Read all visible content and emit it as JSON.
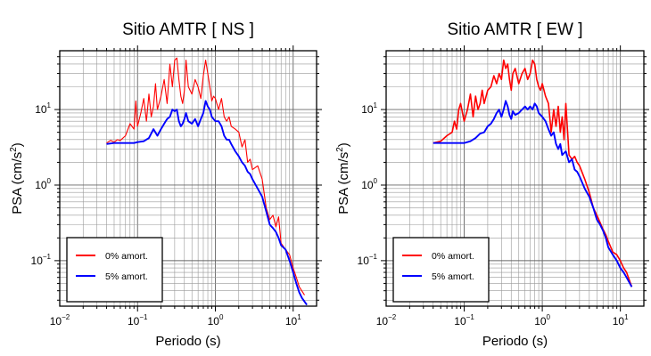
{
  "chart_data": [
    {
      "type": "line",
      "title": "Sitio AMTR [ NS ]",
      "xlabel": "Periodo (s)",
      "ylabel": "PSA (cm/s",
      "ylabel_sup": "2",
      "ylabel_close": ")",
      "xscale": "log",
      "yscale": "log",
      "xlim": [
        0.01,
        20
      ],
      "ylim": [
        0.025,
        60
      ],
      "grid": true,
      "legend_placement": "bottom-left",
      "x_ticks": [
        {
          "base": "10",
          "exp": "−2"
        },
        {
          "base": "10",
          "exp": "−1"
        },
        {
          "base": "10",
          "exp": "0"
        },
        {
          "base": "10",
          "exp": "1"
        }
      ],
      "y_ticks": [
        {
          "base": "10",
          "exp": "−1"
        },
        {
          "base": "10",
          "exp": "0"
        },
        {
          "base": "10",
          "exp": "1"
        }
      ],
      "series": [
        {
          "name": "0% amort.",
          "color": "#ff0000",
          "points": [
            [
              0.04,
              3.6
            ],
            [
              0.045,
              3.9
            ],
            [
              0.05,
              3.7
            ],
            [
              0.055,
              4.0
            ],
            [
              0.06,
              3.9
            ],
            [
              0.07,
              4.5
            ],
            [
              0.08,
              6.5
            ],
            [
              0.09,
              5.5
            ],
            [
              0.095,
              13
            ],
            [
              0.1,
              6
            ],
            [
              0.11,
              9
            ],
            [
              0.12,
              14
            ],
            [
              0.13,
              7
            ],
            [
              0.14,
              16
            ],
            [
              0.15,
              8
            ],
            [
              0.16,
              11
            ],
            [
              0.17,
              22
            ],
            [
              0.18,
              10
            ],
            [
              0.2,
              15
            ],
            [
              0.22,
              25
            ],
            [
              0.24,
              12
            ],
            [
              0.26,
              40
            ],
            [
              0.28,
              20
            ],
            [
              0.3,
              45
            ],
            [
              0.32,
              48
            ],
            [
              0.34,
              25
            ],
            [
              0.36,
              15
            ],
            [
              0.38,
              12
            ],
            [
              0.4,
              18
            ],
            [
              0.42,
              45
            ],
            [
              0.45,
              20
            ],
            [
              0.5,
              16
            ],
            [
              0.55,
              25
            ],
            [
              0.6,
              20
            ],
            [
              0.65,
              14
            ],
            [
              0.7,
              28
            ],
            [
              0.75,
              45
            ],
            [
              0.8,
              30
            ],
            [
              0.85,
              20
            ],
            [
              0.9,
              13
            ],
            [
              0.95,
              15
            ],
            [
              1.0,
              14
            ],
            [
              1.1,
              10
            ],
            [
              1.2,
              14
            ],
            [
              1.3,
              8
            ],
            [
              1.4,
              7
            ],
            [
              1.5,
              8
            ],
            [
              1.6,
              6
            ],
            [
              1.8,
              5.5
            ],
            [
              2.0,
              5
            ],
            [
              2.2,
              3.2
            ],
            [
              2.4,
              4
            ],
            [
              2.6,
              2
            ],
            [
              2.8,
              2.2
            ],
            [
              3.0,
              1.6
            ],
            [
              3.5,
              1.8
            ],
            [
              4.0,
              1.2
            ],
            [
              4.5,
              0.5
            ],
            [
              5.0,
              0.35
            ],
            [
              5.5,
              0.4
            ],
            [
              6.0,
              0.28
            ],
            [
              6.5,
              0.38
            ],
            [
              7.0,
              0.17
            ],
            [
              8.0,
              0.14
            ],
            [
              9.0,
              0.12
            ],
            [
              10.0,
              0.08
            ],
            [
              11.0,
              0.06
            ],
            [
              12.0,
              0.045
            ],
            [
              14.0,
              0.035
            ]
          ]
        },
        {
          "name": "5% amort.",
          "color": "#0000ff",
          "points": [
            [
              0.04,
              3.5
            ],
            [
              0.05,
              3.6
            ],
            [
              0.06,
              3.6
            ],
            [
              0.07,
              3.6
            ],
            [
              0.08,
              3.6
            ],
            [
              0.09,
              3.6
            ],
            [
              0.1,
              3.7
            ],
            [
              0.12,
              3.8
            ],
            [
              0.14,
              4.2
            ],
            [
              0.16,
              5.5
            ],
            [
              0.18,
              4.5
            ],
            [
              0.2,
              5.5
            ],
            [
              0.22,
              6.5
            ],
            [
              0.24,
              7.5
            ],
            [
              0.26,
              8
            ],
            [
              0.28,
              10
            ],
            [
              0.3,
              9.5
            ],
            [
              0.32,
              10
            ],
            [
              0.34,
              7
            ],
            [
              0.36,
              6
            ],
            [
              0.38,
              6.5
            ],
            [
              0.4,
              7.5
            ],
            [
              0.42,
              9
            ],
            [
              0.45,
              7
            ],
            [
              0.5,
              6.5
            ],
            [
              0.55,
              7.5
            ],
            [
              0.6,
              6
            ],
            [
              0.65,
              7.5
            ],
            [
              0.7,
              9
            ],
            [
              0.75,
              13
            ],
            [
              0.8,
              11
            ],
            [
              0.85,
              10
            ],
            [
              0.9,
              8
            ],
            [
              1.0,
              7
            ],
            [
              1.1,
              7
            ],
            [
              1.2,
              6
            ],
            [
              1.3,
              4.5
            ],
            [
              1.4,
              4
            ],
            [
              1.5,
              4
            ],
            [
              1.6,
              3.5
            ],
            [
              1.8,
              2.8
            ],
            [
              2.0,
              2.4
            ],
            [
              2.2,
              2
            ],
            [
              2.4,
              1.8
            ],
            [
              2.6,
              1.5
            ],
            [
              2.8,
              1.4
            ],
            [
              3.0,
              1.2
            ],
            [
              3.5,
              0.9
            ],
            [
              4.0,
              0.7
            ],
            [
              4.5,
              0.45
            ],
            [
              5.0,
              0.3
            ],
            [
              5.5,
              0.27
            ],
            [
              6.0,
              0.24
            ],
            [
              6.5,
              0.2
            ],
            [
              7.0,
              0.16
            ],
            [
              8.0,
              0.14
            ],
            [
              9.0,
              0.1
            ],
            [
              10.0,
              0.07
            ],
            [
              11.0,
              0.05
            ],
            [
              12.0,
              0.038
            ],
            [
              13.0,
              0.032
            ],
            [
              15.0,
              0.026
            ]
          ]
        }
      ]
    },
    {
      "type": "line",
      "title": "Sitio AMTR [ EW ]",
      "xlabel": "Periodo (s)",
      "ylabel": "PSA (cm/s",
      "ylabel_sup": "2",
      "ylabel_close": ")",
      "xscale": "log",
      "yscale": "log",
      "xlim": [
        0.01,
        20
      ],
      "ylim": [
        0.025,
        60
      ],
      "grid": true,
      "legend_placement": "bottom-left",
      "x_ticks": [
        {
          "base": "10",
          "exp": "−2"
        },
        {
          "base": "10",
          "exp": "−1"
        },
        {
          "base": "10",
          "exp": "0"
        },
        {
          "base": "10",
          "exp": "1"
        }
      ],
      "y_ticks": [
        {
          "base": "10",
          "exp": "−1"
        },
        {
          "base": "10",
          "exp": "0"
        },
        {
          "base": "10",
          "exp": "1"
        }
      ],
      "series": [
        {
          "name": "0% amort.",
          "color": "#ff0000",
          "points": [
            [
              0.04,
              3.6
            ],
            [
              0.05,
              3.8
            ],
            [
              0.06,
              4.5
            ],
            [
              0.07,
              5
            ],
            [
              0.075,
              7
            ],
            [
              0.08,
              5.5
            ],
            [
              0.085,
              10
            ],
            [
              0.09,
              12
            ],
            [
              0.1,
              7
            ],
            [
              0.11,
              10
            ],
            [
              0.12,
              16
            ],
            [
              0.13,
              8
            ],
            [
              0.14,
              15
            ],
            [
              0.15,
              10
            ],
            [
              0.16,
              12
            ],
            [
              0.17,
              18
            ],
            [
              0.18,
              12
            ],
            [
              0.2,
              18
            ],
            [
              0.22,
              20
            ],
            [
              0.24,
              28
            ],
            [
              0.26,
              22
            ],
            [
              0.28,
              30
            ],
            [
              0.3,
              25
            ],
            [
              0.32,
              45
            ],
            [
              0.34,
              35
            ],
            [
              0.36,
              40
            ],
            [
              0.38,
              25
            ],
            [
              0.4,
              18
            ],
            [
              0.42,
              30
            ],
            [
              0.45,
              35
            ],
            [
              0.5,
              22
            ],
            [
              0.55,
              30
            ],
            [
              0.6,
              35
            ],
            [
              0.65,
              25
            ],
            [
              0.7,
              30
            ],
            [
              0.75,
              45
            ],
            [
              0.8,
              40
            ],
            [
              0.85,
              25
            ],
            [
              0.9,
              20
            ],
            [
              0.95,
              18
            ],
            [
              1.0,
              22
            ],
            [
              1.1,
              15
            ],
            [
              1.2,
              12
            ],
            [
              1.3,
              5
            ],
            [
              1.4,
              10
            ],
            [
              1.5,
              6
            ],
            [
              1.6,
              11
            ],
            [
              1.7,
              5
            ],
            [
              1.8,
              8
            ],
            [
              1.9,
              4
            ],
            [
              2.0,
              12
            ],
            [
              2.2,
              2.5
            ],
            [
              2.4,
              2.2
            ],
            [
              2.6,
              2.4
            ],
            [
              2.8,
              2
            ],
            [
              3.0,
              1.8
            ],
            [
              3.5,
              1.2
            ],
            [
              4.0,
              0.8
            ],
            [
              4.5,
              0.5
            ],
            [
              5.0,
              0.4
            ],
            [
              5.5,
              0.32
            ],
            [
              6.0,
              0.26
            ],
            [
              6.5,
              0.22
            ],
            [
              7.0,
              0.18
            ],
            [
              8.0,
              0.13
            ],
            [
              9.0,
              0.12
            ],
            [
              10.0,
              0.1
            ],
            [
              11.0,
              0.08
            ],
            [
              12.0,
              0.07
            ],
            [
              14.0,
              0.045
            ]
          ]
        },
        {
          "name": "5% amort.",
          "color": "#0000ff",
          "points": [
            [
              0.04,
              3.6
            ],
            [
              0.05,
              3.6
            ],
            [
              0.06,
              3.6
            ],
            [
              0.07,
              3.6
            ],
            [
              0.08,
              3.6
            ],
            [
              0.09,
              3.6
            ],
            [
              0.1,
              3.6
            ],
            [
              0.12,
              3.8
            ],
            [
              0.14,
              4.2
            ],
            [
              0.16,
              4.8
            ],
            [
              0.18,
              5
            ],
            [
              0.2,
              6
            ],
            [
              0.22,
              6.5
            ],
            [
              0.24,
              7.5
            ],
            [
              0.26,
              9
            ],
            [
              0.28,
              10
            ],
            [
              0.3,
              8
            ],
            [
              0.32,
              10
            ],
            [
              0.34,
              13
            ],
            [
              0.36,
              11
            ],
            [
              0.38,
              8.5
            ],
            [
              0.4,
              7.5
            ],
            [
              0.42,
              9.5
            ],
            [
              0.45,
              8.5
            ],
            [
              0.5,
              9
            ],
            [
              0.55,
              10
            ],
            [
              0.6,
              11
            ],
            [
              0.65,
              10
            ],
            [
              0.7,
              11
            ],
            [
              0.75,
              10
            ],
            [
              0.8,
              12
            ],
            [
              0.85,
              11
            ],
            [
              0.9,
              9
            ],
            [
              1.0,
              8
            ],
            [
              1.1,
              7
            ],
            [
              1.2,
              5.5
            ],
            [
              1.3,
              4.5
            ],
            [
              1.4,
              5
            ],
            [
              1.5,
              3.5
            ],
            [
              1.6,
              3
            ],
            [
              1.7,
              3.5
            ],
            [
              1.8,
              2.5
            ],
            [
              2.0,
              2.8
            ],
            [
              2.2,
              2
            ],
            [
              2.4,
              2.2
            ],
            [
              2.6,
              1.6
            ],
            [
              2.8,
              1.5
            ],
            [
              3.0,
              1.3
            ],
            [
              3.5,
              0.9
            ],
            [
              4.0,
              0.7
            ],
            [
              4.5,
              0.5
            ],
            [
              5.0,
              0.35
            ],
            [
              5.5,
              0.3
            ],
            [
              6.0,
              0.25
            ],
            [
              6.5,
              0.2
            ],
            [
              7.0,
              0.15
            ],
            [
              8.0,
              0.12
            ],
            [
              9.0,
              0.1
            ],
            [
              10.0,
              0.08
            ],
            [
              11.0,
              0.07
            ],
            [
              12.0,
              0.06
            ],
            [
              14.0,
              0.045
            ]
          ]
        }
      ]
    }
  ]
}
